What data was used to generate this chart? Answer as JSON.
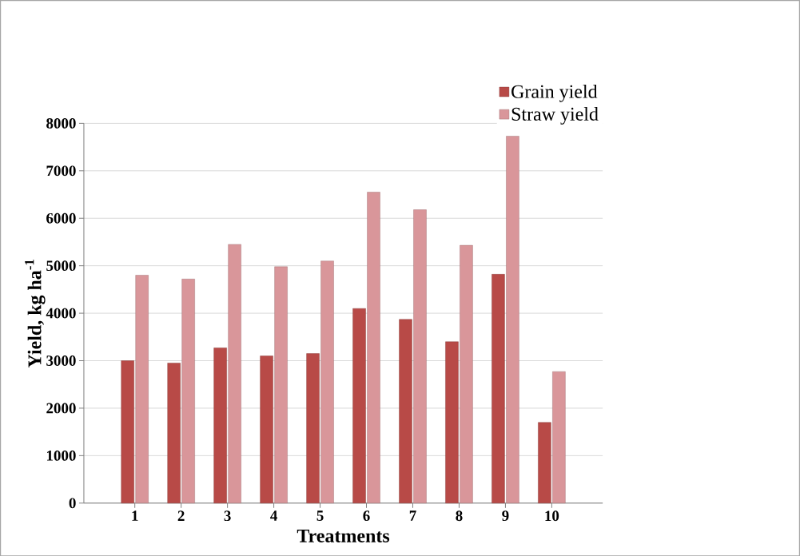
{
  "chart_data": {
    "type": "bar",
    "xlabel": "Treatments",
    "ylabel": "Yield, kg ha$^{-1}$",
    "categories": [
      "1",
      "2",
      "3",
      "4",
      "5",
      "6",
      "7",
      "8",
      "9",
      "10"
    ],
    "series": [
      {
        "name": "Grain yield",
        "color": "#b84a47",
        "values": [
          3000,
          2950,
          3270,
          3100,
          3150,
          4100,
          3870,
          3400,
          4820,
          1700
        ]
      },
      {
        "name": "Straw yield",
        "color": "#d9969a",
        "values": [
          4800,
          4720,
          5450,
          4980,
          5100,
          6550,
          6180,
          5430,
          7730,
          2770
        ]
      }
    ],
    "ylim": [
      0,
      8000
    ],
    "yticks": [
      0,
      1000,
      2000,
      3000,
      4000,
      5000,
      6000,
      7000,
      8000
    ],
    "grid": "y",
    "legend": "top right"
  }
}
